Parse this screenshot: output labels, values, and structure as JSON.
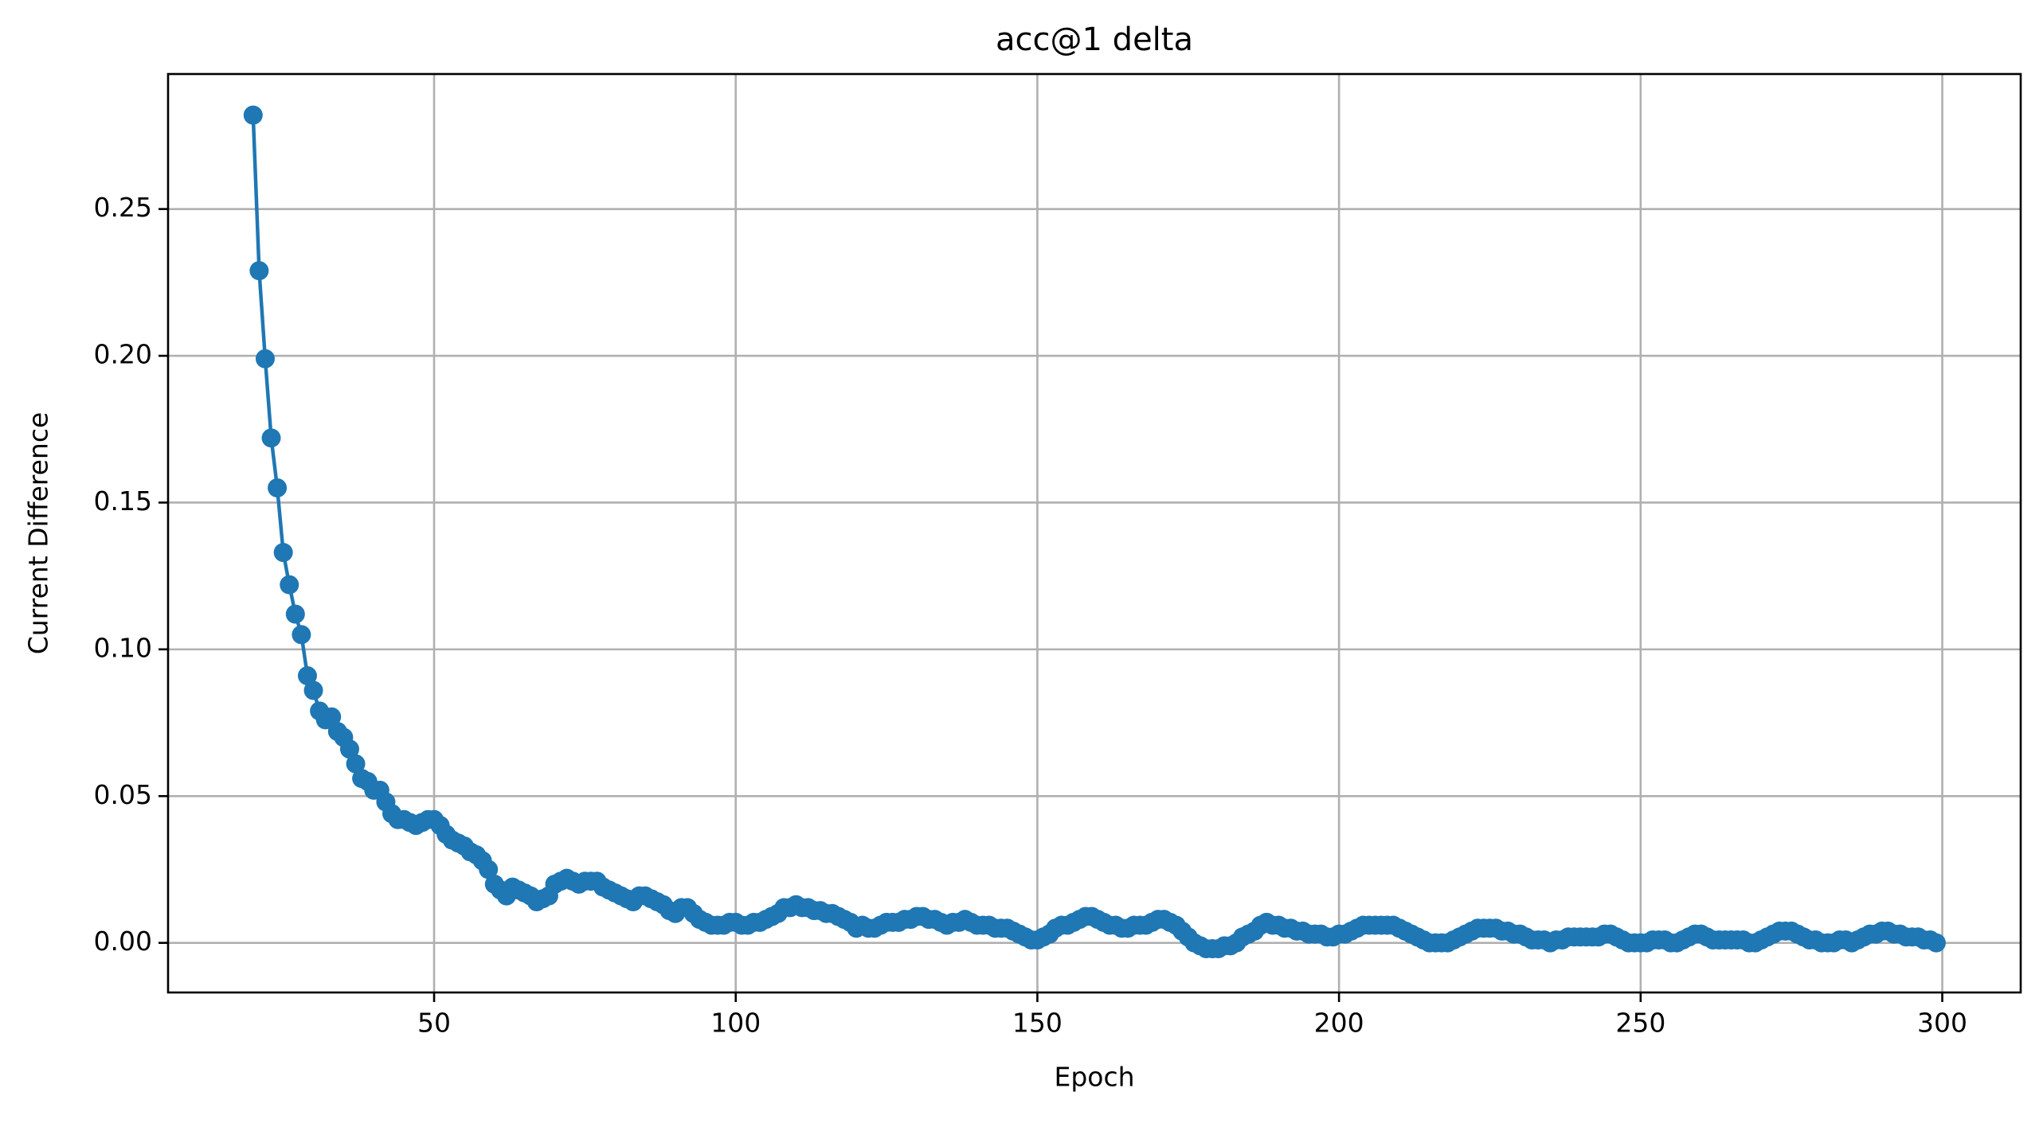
{
  "chart_data": {
    "type": "line",
    "title": "acc@1 delta",
    "xlabel": "Epoch",
    "ylabel": "Current Difference",
    "x": [
      20,
      21,
      22,
      23,
      24,
      25,
      26,
      27,
      28,
      29,
      30,
      31,
      32,
      33,
      34,
      35,
      36,
      37,
      38,
      39,
      40,
      41,
      42,
      43,
      44,
      45,
      46,
      47,
      48,
      49,
      50,
      51,
      52,
      53,
      54,
      55,
      56,
      57,
      58,
      59,
      60,
      61,
      62,
      63,
      64,
      65,
      66,
      67,
      68,
      69,
      70,
      71,
      72,
      73,
      74,
      75,
      76,
      77,
      78,
      79,
      80,
      81,
      82,
      83,
      84,
      85,
      86,
      87,
      88,
      89,
      90,
      91,
      92,
      93,
      94,
      95,
      96,
      97,
      98,
      99,
      100,
      101,
      102,
      103,
      104,
      105,
      106,
      107,
      108,
      109,
      110,
      111,
      112,
      113,
      114,
      115,
      116,
      117,
      118,
      119,
      120,
      121,
      122,
      123,
      124,
      125,
      126,
      127,
      128,
      129,
      130,
      131,
      132,
      133,
      134,
      135,
      136,
      137,
      138,
      139,
      140,
      141,
      142,
      143,
      144,
      145,
      146,
      147,
      148,
      149,
      150,
      151,
      152,
      153,
      154,
      155,
      156,
      157,
      158,
      159,
      160,
      161,
      162,
      163,
      164,
      165,
      166,
      167,
      168,
      169,
      170,
      171,
      172,
      173,
      174,
      175,
      176,
      177,
      178,
      179,
      180,
      181,
      182,
      183,
      184,
      185,
      186,
      187,
      188,
      189,
      190,
      191,
      192,
      193,
      194,
      195,
      196,
      197,
      198,
      199,
      200,
      201,
      202,
      203,
      204,
      205,
      206,
      207,
      208,
      209,
      210,
      211,
      212,
      213,
      214,
      215,
      216,
      217,
      218,
      219,
      220,
      221,
      222,
      223,
      224,
      225,
      226,
      227,
      228,
      229,
      230,
      231,
      232,
      233,
      234,
      235,
      236,
      237,
      238,
      239,
      240,
      241,
      242,
      243,
      244,
      245,
      246,
      247,
      248,
      249,
      250,
      251,
      252,
      253,
      254,
      255,
      256,
      257,
      258,
      259,
      260,
      261,
      262,
      263,
      264,
      265,
      266,
      267,
      268,
      269,
      270,
      271,
      272,
      273,
      274,
      275,
      276,
      277,
      278,
      279,
      280,
      281,
      282,
      283,
      284,
      285,
      286,
      287,
      288,
      289,
      290,
      291,
      292,
      293,
      294,
      295,
      296,
      297,
      298,
      299
    ],
    "series": [
      {
        "name": "acc@1 delta",
        "color": "#1f77b4",
        "values": [
          0.282,
          0.229,
          0.199,
          0.172,
          0.155,
          0.133,
          0.122,
          0.112,
          0.105,
          0.091,
          0.086,
          0.079,
          0.076,
          0.077,
          0.072,
          0.07,
          0.066,
          0.061,
          0.056,
          0.055,
          0.052,
          0.052,
          0.048,
          0.044,
          0.042,
          0.042,
          0.041,
          0.04,
          0.041,
          0.042,
          0.042,
          0.04,
          0.037,
          0.035,
          0.034,
          0.033,
          0.031,
          0.03,
          0.028,
          0.025,
          0.02,
          0.018,
          0.016,
          0.019,
          0.018,
          0.017,
          0.016,
          0.014,
          0.015,
          0.016,
          0.02,
          0.021,
          0.022,
          0.021,
          0.02,
          0.021,
          0.021,
          0.021,
          0.019,
          0.018,
          0.017,
          0.016,
          0.015,
          0.014,
          0.016,
          0.016,
          0.015,
          0.014,
          0.013,
          0.011,
          0.01,
          0.012,
          0.012,
          0.01,
          0.008,
          0.007,
          0.006,
          0.006,
          0.006,
          0.007,
          0.007,
          0.006,
          0.006,
          0.007,
          0.007,
          0.008,
          0.009,
          0.01,
          0.012,
          0.012,
          0.013,
          0.012,
          0.012,
          0.011,
          0.011,
          0.01,
          0.01,
          0.009,
          0.008,
          0.007,
          0.005,
          0.006,
          0.005,
          0.005,
          0.006,
          0.007,
          0.007,
          0.007,
          0.008,
          0.008,
          0.009,
          0.009,
          0.008,
          0.008,
          0.007,
          0.006,
          0.007,
          0.007,
          0.008,
          0.007,
          0.006,
          0.006,
          0.006,
          0.005,
          0.005,
          0.005,
          0.004,
          0.003,
          0.002,
          0.001,
          0.001,
          0.002,
          0.003,
          0.005,
          0.006,
          0.006,
          0.007,
          0.008,
          0.009,
          0.009,
          0.008,
          0.007,
          0.006,
          0.006,
          0.005,
          0.005,
          0.006,
          0.006,
          0.006,
          0.007,
          0.008,
          0.008,
          0.007,
          0.006,
          0.004,
          0.002,
          0.0,
          -0.001,
          -0.002,
          -0.002,
          -0.002,
          -0.001,
          -0.001,
          0.0,
          0.002,
          0.003,
          0.004,
          0.006,
          0.007,
          0.006,
          0.006,
          0.005,
          0.005,
          0.004,
          0.004,
          0.003,
          0.003,
          0.003,
          0.002,
          0.002,
          0.003,
          0.003,
          0.004,
          0.005,
          0.006,
          0.006,
          0.006,
          0.006,
          0.006,
          0.006,
          0.005,
          0.004,
          0.003,
          0.002,
          0.001,
          0.0,
          0.0,
          0.0,
          0.0,
          0.001,
          0.002,
          0.003,
          0.004,
          0.005,
          0.005,
          0.005,
          0.005,
          0.004,
          0.004,
          0.003,
          0.003,
          0.002,
          0.001,
          0.001,
          0.001,
          0.0,
          0.001,
          0.001,
          0.002,
          0.002,
          0.002,
          0.002,
          0.002,
          0.002,
          0.003,
          0.003,
          0.002,
          0.001,
          0.0,
          0.0,
          0.0,
          0.0,
          0.001,
          0.001,
          0.001,
          0.0,
          0.0,
          0.001,
          0.002,
          0.003,
          0.003,
          0.002,
          0.001,
          0.001,
          0.001,
          0.001,
          0.001,
          0.001,
          0.0,
          0.0,
          0.001,
          0.002,
          0.003,
          0.004,
          0.004,
          0.004,
          0.003,
          0.002,
          0.001,
          0.001,
          0.0,
          0.0,
          0.0,
          0.001,
          0.001,
          0.0,
          0.001,
          0.002,
          0.003,
          0.003,
          0.004,
          0.004,
          0.003,
          0.003,
          0.002,
          0.002,
          0.002,
          0.001,
          0.001,
          0.0
        ]
      }
    ],
    "xlim": [
      5.9,
      313
    ],
    "ylim": [
      -0.0169,
      0.296
    ],
    "xticks": [
      50,
      100,
      150,
      200,
      250,
      300
    ],
    "yticks": [
      {
        "value": 0,
        "label": "0.00"
      },
      0.05,
      {
        "value": 0.1,
        "label": "0.10"
      },
      0.15,
      {
        "value": 0.2,
        "label": "0.20"
      },
      0.25
    ],
    "grid": true
  }
}
